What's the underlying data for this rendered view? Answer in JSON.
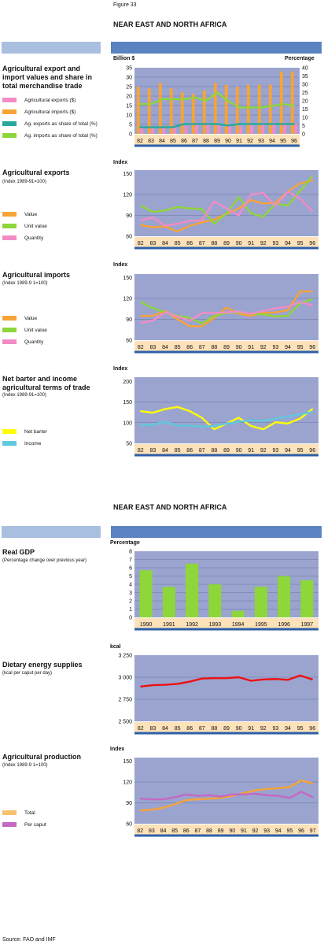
{
  "figure_label": "Figure 33",
  "region_title": "NEAR EAST AND NORTH AFRICA",
  "region_title_2": "NEAR EAST AND NORTH AFRICA",
  "source": "Source: FAO and IMF",
  "colors": {
    "orange": "#f7a336",
    "green": "#8ed63a",
    "pink": "#f28bc6",
    "teal": "#26a99a",
    "yellow": "#ffff00",
    "cyan": "#5fc8dc",
    "red": "#e11",
    "purple": "#c468c4",
    "plot_bg": "#9aa4cf",
    "xaxis_bg": "#fde1b8",
    "baseline": "#2d5fa8"
  },
  "panels": {
    "p1": {
      "title_lines": [
        "Agricultural export and",
        "import values and share in",
        "total merchandise trade"
      ],
      "left_unit": "Billion $",
      "right_unit": "Percentage",
      "legend": [
        "Agricultural exports ($)",
        "Agricultural imports ($)",
        "Ag. exports as share of total (%)",
        "Ag. imports as share of total (%)"
      ]
    },
    "p2": {
      "title": "Agricultural exports",
      "subtitle": "(Index 1989-91=100)",
      "unit": "Index",
      "legend": [
        "Value",
        "Unit value",
        "Quantity"
      ]
    },
    "p3": {
      "title": "Agricultural imports",
      "subtitle": "(Index 1989-9 1=100)",
      "unit": "Index",
      "legend": [
        "Value",
        "Unit value",
        "Quantity"
      ]
    },
    "p4": {
      "title_lines": [
        "Net barter and income",
        "agricultural terms of trade"
      ],
      "subtitle": "(Index 1989-91=100)",
      "unit": "Index",
      "legend": [
        "Net barter",
        "Income"
      ]
    },
    "p5": {
      "title": "Real GDP",
      "subtitle": "(Percentage change over previous year)",
      "unit": "Percentage"
    },
    "p6": {
      "title": "Dietary energy supplies",
      "subtitle": "(kcal per caput per day)",
      "unit": "kcal"
    },
    "p7": {
      "title": "Agricultural production",
      "subtitle": "(Index 1989-9 1=100)",
      "unit": "Index",
      "legend": [
        "Total",
        "Per caput"
      ]
    }
  },
  "chart_data": [
    {
      "id": "trade",
      "type": "bar",
      "categories": [
        "82",
        "83",
        "84",
        "85",
        "86",
        "87",
        "88",
        "89",
        "90",
        "91",
        "92",
        "93",
        "94",
        "95",
        "96"
      ],
      "ylim": [
        0,
        35
      ],
      "yticks": [
        0,
        5,
        10,
        15,
        20,
        25,
        30,
        35
      ],
      "y2lim": [
        0,
        40
      ],
      "y2ticks": [
        0,
        5,
        10,
        15,
        20,
        25,
        30,
        35,
        40
      ],
      "series": [
        {
          "name": "Agricultural exports ($)",
          "kind": "bar",
          "color": "pink",
          "values": [
            4,
            4,
            4,
            4,
            4,
            5,
            5,
            5,
            5,
            4,
            5,
            6,
            6,
            6,
            5
          ]
        },
        {
          "name": "Agricultural imports ($)",
          "kind": "bar",
          "color": "orange",
          "values": [
            25,
            24,
            27,
            24,
            22,
            21,
            23,
            27,
            26,
            25,
            26,
            26,
            26,
            33,
            33
          ]
        },
        {
          "name": "Ag. exports as share of total (%)",
          "kind": "line",
          "axis": "right",
          "color": "teal",
          "values": [
            4,
            4,
            4,
            4,
            6,
            6,
            6,
            6,
            5,
            6,
            6,
            6,
            6,
            6,
            6
          ]
        },
        {
          "name": "Ag. imports as share of total (%)",
          "kind": "line",
          "axis": "right",
          "color": "green",
          "values": [
            18,
            18,
            21,
            21,
            21,
            22,
            20,
            25,
            20,
            16,
            16,
            16,
            17,
            18,
            17
          ]
        }
      ]
    },
    {
      "id": "exports",
      "type": "line",
      "categories": [
        "82",
        "83",
        "84",
        "85",
        "86",
        "87",
        "88",
        "89",
        "90",
        "91",
        "92",
        "93",
        "94",
        "95",
        "96"
      ],
      "ylim": [
        60,
        155
      ],
      "yticks": [
        60,
        90,
        120,
        150
      ],
      "series": [
        {
          "name": "Value",
          "color": "orange",
          "values": [
            76,
            73,
            74,
            67,
            75,
            80,
            84,
            92,
            100,
            112,
            107,
            108,
            124,
            136,
            140
          ]
        },
        {
          "name": "Unit value",
          "color": "green",
          "values": [
            104,
            95,
            97,
            102,
            100,
            99,
            78,
            93,
            116,
            93,
            88,
            107,
            104,
            125,
            147
          ]
        },
        {
          "name": "Quantity",
          "color": "pink",
          "values": [
            83,
            87,
            75,
            78,
            82,
            83,
            110,
            100,
            90,
            120,
            122,
            104,
            124,
            114,
            96
          ]
        }
      ]
    },
    {
      "id": "imports",
      "type": "line",
      "categories": [
        "82",
        "83",
        "84",
        "85",
        "86",
        "87",
        "88",
        "89",
        "90",
        "91",
        "92",
        "93",
        "94",
        "95",
        "96"
      ],
      "ylim": [
        60,
        155
      ],
      "yticks": [
        60,
        90,
        120,
        150
      ],
      "series": [
        {
          "name": "Value",
          "color": "orange",
          "values": [
            95,
            95,
            102,
            90,
            80,
            80,
            92,
            107,
            98,
            95,
            99,
            100,
            103,
            130,
            130
          ]
        },
        {
          "name": "Unit value",
          "color": "green",
          "values": [
            115,
            106,
            100,
            95,
            92,
            84,
            95,
            99,
            100,
            98,
            97,
            94,
            95,
            113,
            119
          ]
        },
        {
          "name": "Quantity",
          "color": "pink",
          "values": [
            85,
            88,
            100,
            94,
            88,
            99,
            99,
            100,
            101,
            98,
            102,
            106,
            108,
            115,
            110
          ]
        }
      ]
    },
    {
      "id": "tot",
      "type": "line",
      "categories": [
        "82",
        "83",
        "84",
        "85",
        "86",
        "87",
        "88",
        "89",
        "90",
        "91",
        "92",
        "93",
        "94",
        "95",
        "96"
      ],
      "ylim": [
        50,
        210
      ],
      "yticks": [
        50,
        100,
        150,
        200
      ],
      "series": [
        {
          "name": "Net barter",
          "color": "yellow",
          "values": [
            128,
            124,
            133,
            138,
            128,
            112,
            84,
            98,
            112,
            92,
            84,
            101,
            98,
            110,
            133
          ]
        },
        {
          "name": "Income",
          "color": "cyan",
          "values": [
            95,
            95,
            102,
            93,
            93,
            90,
            92,
            98,
            102,
            106,
            104,
            110,
            115,
            120,
            126
          ]
        }
      ]
    },
    {
      "id": "gdp",
      "type": "bar",
      "categories": [
        "1990",
        "1991",
        "1992",
        "1993",
        "1994",
        "1995",
        "1996",
        "1997"
      ],
      "ylim": [
        0,
        8
      ],
      "yticks": [
        0,
        1,
        2,
        3,
        4,
        5,
        6,
        7,
        8
      ],
      "series": [
        {
          "name": "Real GDP",
          "color": "green",
          "values": [
            5.7,
            3.7,
            6.5,
            4.0,
            0.8,
            3.7,
            5.0,
            4.5
          ]
        }
      ]
    },
    {
      "id": "des",
      "type": "line",
      "categories": [
        "82",
        "83",
        "84",
        "85",
        "86",
        "87",
        "88",
        "89",
        "90",
        "91",
        "92",
        "93",
        "94",
        "95",
        "96"
      ],
      "ylim": [
        2500,
        3250
      ],
      "yticks": [
        2500,
        2750,
        3000,
        3250
      ],
      "ytick_labels": [
        "2 500",
        "2 750",
        "3 000",
        "3 250"
      ],
      "series": [
        {
          "name": "Dietary energy supplies",
          "color": "red",
          "values": [
            2895,
            2910,
            2915,
            2925,
            2950,
            2985,
            2990,
            2990,
            3000,
            2960,
            2975,
            2980,
            2970,
            3020,
            2975
          ]
        }
      ]
    },
    {
      "id": "prod",
      "type": "line",
      "categories": [
        "82",
        "83",
        "84",
        "85",
        "86",
        "87",
        "88",
        "89",
        "90",
        "91",
        "92",
        "93",
        "94",
        "95",
        "96",
        "97"
      ],
      "ylim": [
        60,
        155
      ],
      "yticks": [
        60,
        90,
        120,
        150
      ],
      "series": [
        {
          "name": "Total",
          "color": "orange",
          "values": [
            79,
            80,
            83,
            88,
            94,
            95,
            96,
            97,
            100,
            104,
            108,
            110,
            111,
            113,
            122,
            118
          ]
        },
        {
          "name": "Per caput",
          "color": "purple",
          "values": [
            96,
            95,
            95,
            98,
            102,
            100,
            101,
            99,
            102,
            102,
            103,
            101,
            100,
            97,
            106,
            98
          ]
        }
      ]
    }
  ]
}
